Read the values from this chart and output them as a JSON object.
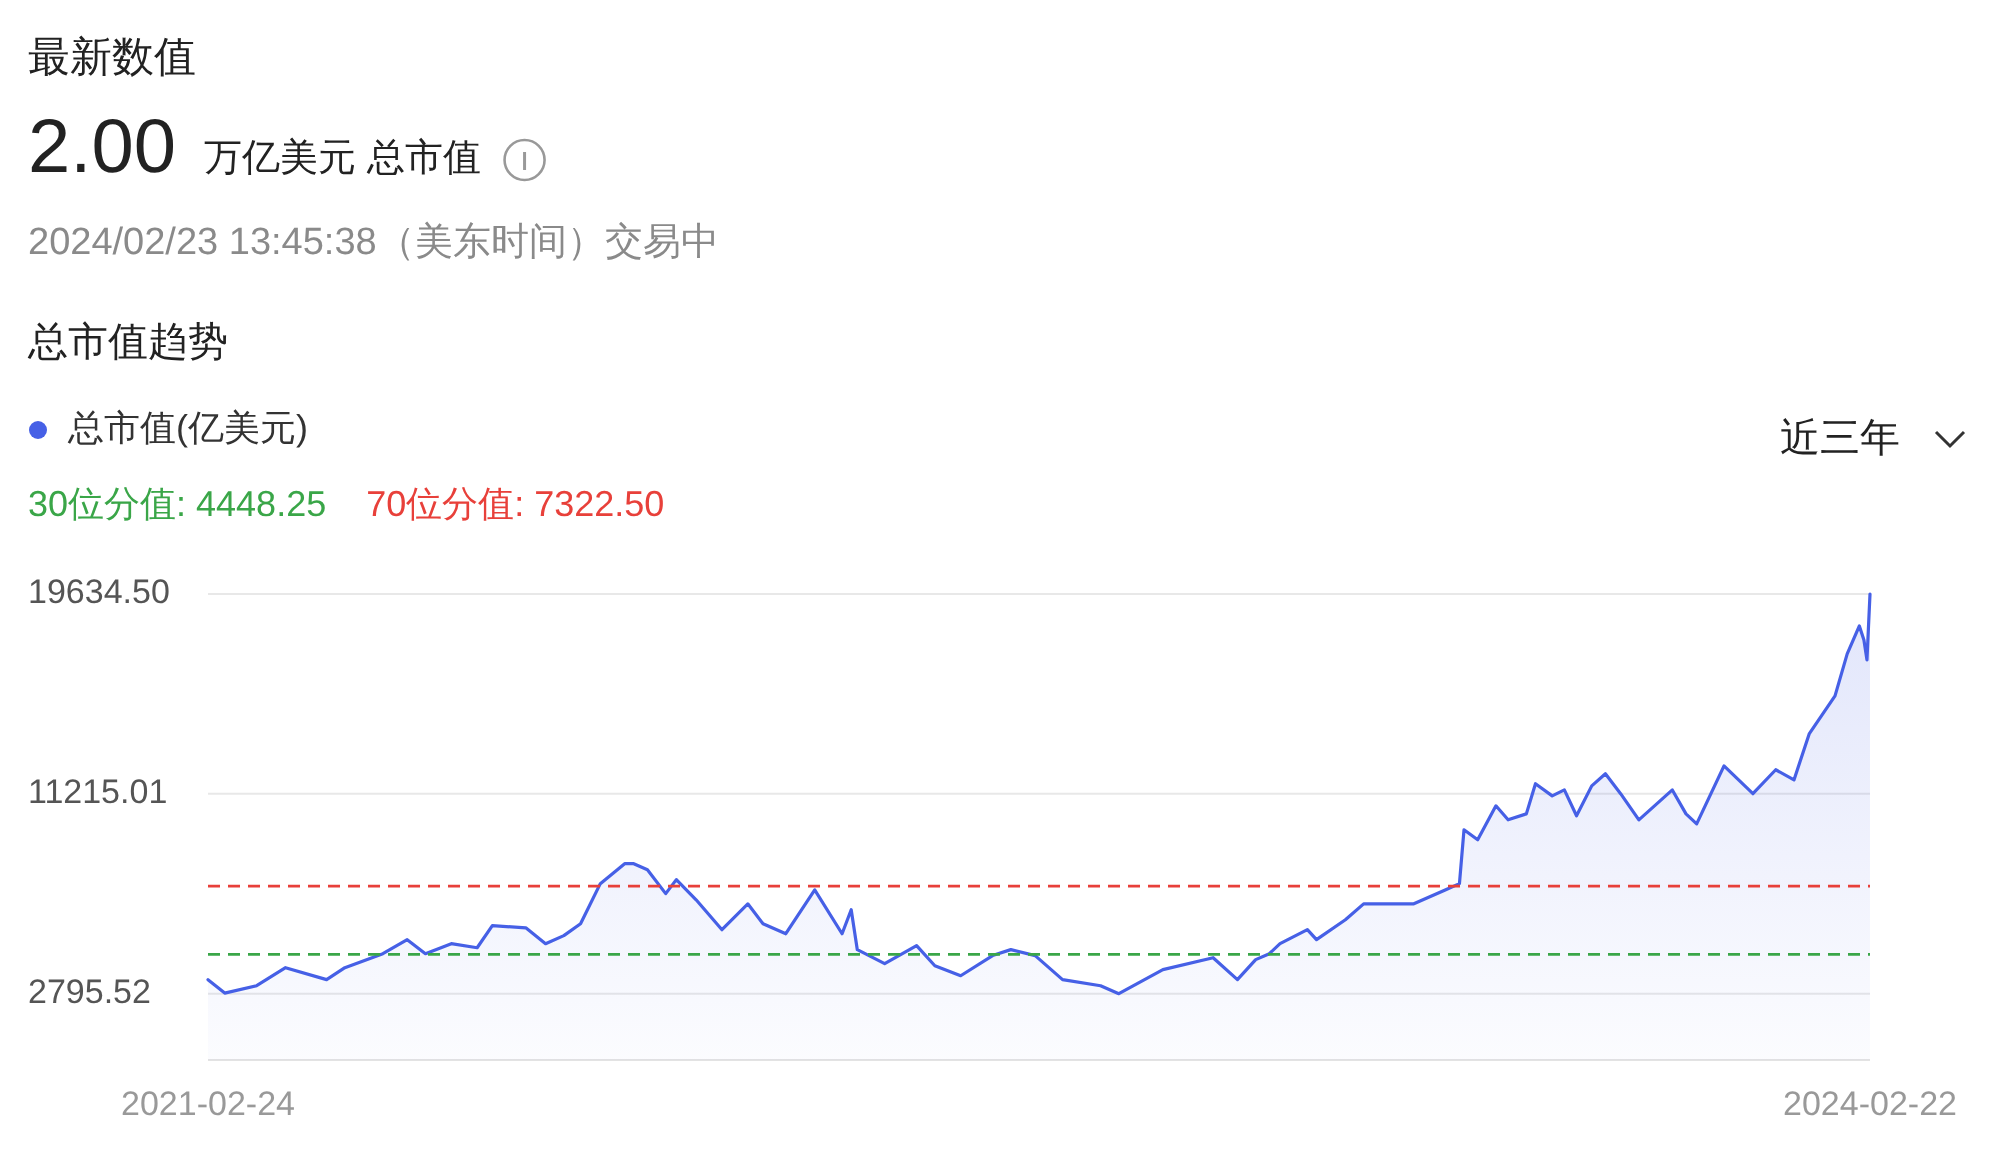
{
  "chart_data": {
    "type": "area",
    "title": "总市值趋势",
    "annotations": [
      "最新数值",
      "2.00",
      "万亿美元 总市值",
      "2024/02/23 13:45:38（美东时间）交易中",
      "近三年"
    ],
    "x": [
      "2021-02-24",
      "2021-03-07",
      "2021-03-28",
      "2021-04-16",
      "2021-05-13",
      "2021-05-25",
      "2021-06-19",
      "2021-07-05",
      "2021-07-17",
      "2021-08-03",
      "2021-08-20",
      "2021-08-30",
      "2021-09-21",
      "2021-10-04",
      "2021-10-16",
      "2021-10-27",
      "2021-11-09",
      "2021-11-25",
      "2021-12-01",
      "2021-12-10",
      "2021-12-22",
      "2021-12-29",
      "2022-01-11",
      "2022-01-28",
      "2022-02-14",
      "2022-02-24",
      "2022-03-11",
      "2022-03-30",
      "2022-04-17",
      "2022-04-23",
      "2022-04-27",
      "2022-05-15",
      "2022-06-05",
      "2022-06-17",
      "2022-07-04",
      "2022-07-25",
      "2022-08-06",
      "2022-08-22",
      "2022-09-09",
      "2022-10-04",
      "2022-10-16",
      "2022-11-14",
      "2022-12-17",
      "2023-01-02",
      "2023-01-14",
      "2023-01-23",
      "2023-01-30",
      "2023-02-17",
      "2023-02-23",
      "2023-03-14",
      "2023-03-26",
      "2023-04-28",
      "2023-05-19",
      "2023-05-28",
      "2023-05-31",
      "2023-06-09",
      "2023-06-21",
      "2023-06-29",
      "2023-07-11",
      "2023-07-17",
      "2023-07-28",
      "2023-08-05",
      "2023-08-13",
      "2023-08-23",
      "2023-09-01",
      "2023-09-11",
      "2023-09-23",
      "2023-10-15",
      "2023-10-24",
      "2023-10-31",
      "2023-11-18",
      "2023-12-07",
      "2023-12-22",
      "2024-01-03",
      "2024-01-13",
      "2024-01-30",
      "2024-02-07",
      "2024-02-15",
      "2024-02-18",
      "2024-02-20",
      "2024-02-22"
    ],
    "series": [
      {
        "name": "总市值(亿美元)",
        "color": "#4660e6",
        "values": [
          3385,
          2820,
          3130,
          3890,
          3385,
          3890,
          4480,
          5070,
          4480,
          4900,
          4730,
          5660,
          5570,
          4900,
          5240,
          5740,
          7430,
          8270,
          8270,
          8020,
          7010,
          7600,
          6750,
          5490,
          6580,
          5740,
          5320,
          7170,
          5320,
          6330,
          4650,
          4060,
          4820,
          3970,
          3550,
          4400,
          4650,
          4400,
          3385,
          3130,
          2795.52,
          3810,
          4310,
          3385,
          4230,
          4480,
          4900,
          5490,
          5070,
          5910,
          6580,
          6580,
          7170,
          7430,
          9700,
          9280,
          10710,
          10120,
          10370,
          11640,
          11130,
          11380,
          10290,
          11550,
          12060,
          11220,
          10120,
          11380,
          10370,
          9950,
          12390,
          11220,
          12230,
          11800,
          13740,
          15340,
          17110,
          18290,
          17700,
          16860,
          19634.5
        ]
      }
    ],
    "xlim": [
      "2021-02-24",
      "2024-02-22"
    ],
    "xticks": [
      {
        "value": "2021-02-24",
        "label": "2021-02-24"
      },
      {
        "value": "2024-02-22",
        "label": "2024-02-22"
      }
    ],
    "ylim": [
      0,
      19634.5
    ],
    "yticks": [
      {
        "value": 2795.52,
        "label": "2795.52"
      },
      {
        "value": 11215.01,
        "label": "11215.01"
      },
      {
        "value": 19634.5,
        "label": "19634.50"
      }
    ],
    "ref_lines": [
      {
        "axis": "y",
        "value": 4448.25,
        "label": "30位分值: 4448.25",
        "color": "#3aa648",
        "line_style": "dashed"
      },
      {
        "axis": "y",
        "value": 7322.5,
        "label": "70位分值: 7322.50",
        "color": "#e8403a",
        "line_style": "dashed"
      }
    ],
    "grid": "y",
    "legend": "top left"
  }
}
